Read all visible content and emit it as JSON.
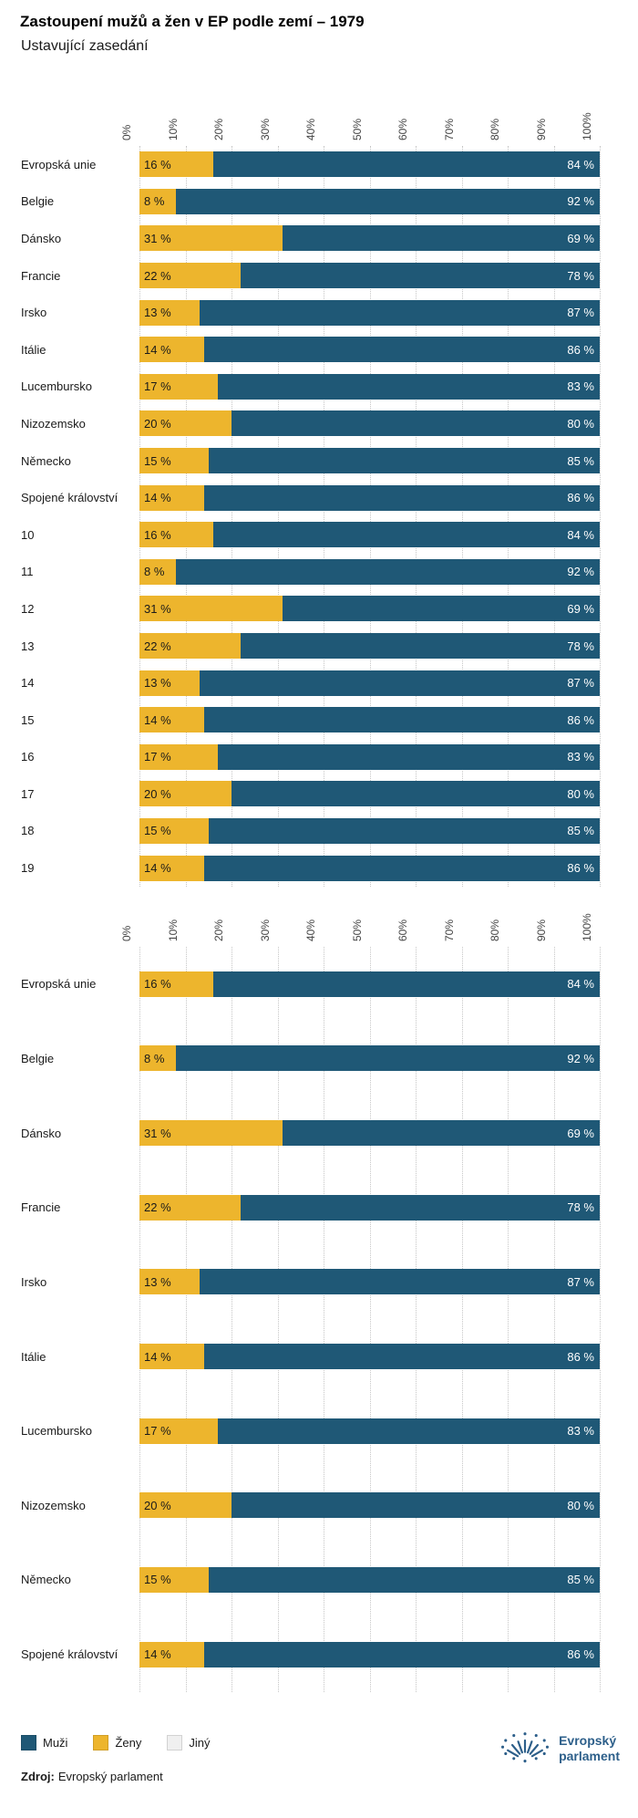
{
  "header": {
    "title": "Zastoupení mužů a žen v EP podle zemí – 1979",
    "subtitle": "Ustavující zasedání"
  },
  "value_suffix": " %",
  "chart_data": [
    {
      "type": "bar",
      "orientation": "horizontal",
      "stacked": true,
      "legend_position": "bottom",
      "x_axis": {
        "min": 0,
        "max": 100,
        "ticks": [
          0,
          10,
          20,
          30,
          40,
          50,
          60,
          70,
          80,
          90,
          100
        ],
        "tick_labels": [
          "0%",
          "10%",
          "20%",
          "30%",
          "40%",
          "50%",
          "60%",
          "70%",
          "80%",
          "90%",
          "100%"
        ],
        "grid": "dotted"
      },
      "categories": [
        "Evropská unie",
        "Belgie",
        "Dánsko",
        "Francie",
        "Irsko",
        "Itálie",
        "Lucembursko",
        "Nizozemsko",
        "Německo",
        "Spojené království",
        "10",
        "11",
        "12",
        "13",
        "14",
        "15",
        "16",
        "17",
        "18",
        "19"
      ],
      "series": [
        {
          "name": "Ženy",
          "color": "#edb52d",
          "values": [
            16,
            8,
            31,
            22,
            13,
            14,
            17,
            20,
            15,
            14,
            16,
            8,
            31,
            22,
            13,
            14,
            17,
            20,
            15,
            14
          ]
        },
        {
          "name": "Muži",
          "color": "#1f5876",
          "values": [
            84,
            92,
            69,
            78,
            87,
            86,
            83,
            80,
            85,
            86,
            84,
            92,
            69,
            78,
            87,
            86,
            83,
            80,
            85,
            86
          ]
        },
        {
          "name": "Jiný",
          "color": "#f0f0f0",
          "values": [
            0,
            0,
            0,
            0,
            0,
            0,
            0,
            0,
            0,
            0,
            0,
            0,
            0,
            0,
            0,
            0,
            0,
            0,
            0,
            0
          ]
        }
      ]
    },
    {
      "type": "bar",
      "orientation": "horizontal",
      "stacked": true,
      "legend_position": "bottom",
      "x_axis": {
        "min": 0,
        "max": 100,
        "ticks": [
          0,
          10,
          20,
          30,
          40,
          50,
          60,
          70,
          80,
          90,
          100
        ],
        "tick_labels": [
          "0%",
          "10%",
          "20%",
          "30%",
          "40%",
          "50%",
          "60%",
          "70%",
          "80%",
          "90%",
          "100%"
        ],
        "grid": "dotted"
      },
      "categories": [
        "Evropská unie",
        "Belgie",
        "Dánsko",
        "Francie",
        "Irsko",
        "Itálie",
        "Lucembursko",
        "Nizozemsko",
        "Německo",
        "Spojené království"
      ],
      "series": [
        {
          "name": "Ženy",
          "color": "#edb52d",
          "values": [
            16,
            8,
            31,
            22,
            13,
            14,
            17,
            20,
            15,
            14
          ]
        },
        {
          "name": "Muži",
          "color": "#1f5876",
          "values": [
            84,
            92,
            69,
            78,
            87,
            86,
            83,
            80,
            85,
            86
          ]
        },
        {
          "name": "Jiný",
          "color": "#f0f0f0",
          "values": [
            0,
            0,
            0,
            0,
            0,
            0,
            0,
            0,
            0,
            0
          ]
        }
      ]
    }
  ],
  "legend": {
    "items": [
      {
        "label": "Muži",
        "color": "#1f5876"
      },
      {
        "label": "Ženy",
        "color": "#edb52d"
      },
      {
        "label": "Jiný",
        "color": "#f0f0f0"
      }
    ]
  },
  "footer": {
    "source_label": "Zdroj:",
    "source_text": "Evropský parlament"
  },
  "logo": {
    "line1": "Evropský",
    "line2": "parlament",
    "color": "#2d5f8a"
  }
}
